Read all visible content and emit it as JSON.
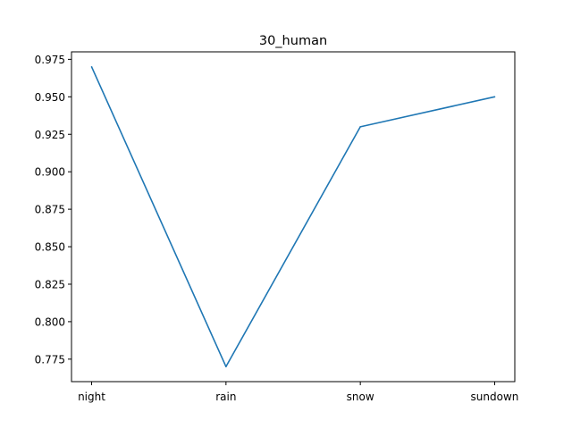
{
  "chart_data": {
    "type": "line",
    "title": "30_human",
    "xlabel": "",
    "ylabel": "",
    "categories": [
      "night",
      "rain",
      "snow",
      "sundown"
    ],
    "series": [
      {
        "values": [
          0.97,
          0.77,
          0.93,
          0.95
        ],
        "color": "#1f77b4"
      }
    ],
    "ylim": [
      0.76,
      0.98
    ],
    "yticks": [
      "0.775",
      "0.800",
      "0.825",
      "0.850",
      "0.875",
      "0.900",
      "0.925",
      "0.950",
      "0.975"
    ],
    "grid": false,
    "legend": "none"
  }
}
